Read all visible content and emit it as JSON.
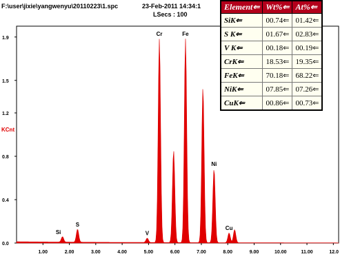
{
  "header": {
    "file_path": "F:\\user\\jixie\\yangwenyu\\20110223\\1.spc",
    "date": "23-Feb-2011 14:34:1",
    "lsecs": "LSecs : 100"
  },
  "table": {
    "headers": [
      "Element⇐",
      "Wt%⇐",
      "At%⇐"
    ],
    "rows": [
      {
        "element": "SiK⇐",
        "wt": "00.74⇐",
        "at": "01.42⇐"
      },
      {
        "element": "S K⇐",
        "wt": "01.67⇐",
        "at": "02.83⇐"
      },
      {
        "element": "V K⇐",
        "wt": "00.18⇐",
        "at": "00.19⇐"
      },
      {
        "element": "CrK⇐",
        "wt": "18.53⇐",
        "at": "19.35⇐"
      },
      {
        "element": "FeK⇐",
        "wt": "70.18⇐",
        "at": "68.22⇐"
      },
      {
        "element": "NiK⇐",
        "wt": "07.85⇐",
        "at": "07.26⇐"
      },
      {
        "element": "CuK⇐",
        "wt": "00.86⇐",
        "at": "00.73⇐"
      }
    ]
  },
  "chart_data": {
    "type": "area",
    "ylabel": "KCnt",
    "xlim": [
      0.0,
      12.2
    ],
    "ylim": [
      0.0,
      2.0
    ],
    "x_ticks": [
      "1.00",
      "2.00",
      "3.00",
      "4.00",
      "5.00",
      "6.00",
      "7.00",
      "8.00",
      "9.00",
      "10.00",
      "11.00",
      "12.0"
    ],
    "y_ticks": [
      "0.0",
      "0.4",
      "0.8",
      "1.2",
      "1.5",
      "1.9"
    ],
    "series_color": "#e00000",
    "peaks": [
      {
        "label": "Si",
        "x": 1.74,
        "y": 0.05
      },
      {
        "label": "S",
        "x": 2.31,
        "y": 0.12
      },
      {
        "label": "V",
        "x": 4.95,
        "y": 0.04
      },
      {
        "label": "Cr",
        "x": 5.41,
        "y": 1.88
      },
      {
        "label": "",
        "x": 5.95,
        "y": 0.85
      },
      {
        "label": "Fe",
        "x": 6.4,
        "y": 1.88
      },
      {
        "label": "",
        "x": 7.06,
        "y": 1.43
      },
      {
        "label": "Ni",
        "x": 7.48,
        "y": 0.68
      },
      {
        "label": "",
        "x": 8.26,
        "y": 0.12
      },
      {
        "label": "Cu",
        "x": 8.05,
        "y": 0.09
      }
    ]
  }
}
